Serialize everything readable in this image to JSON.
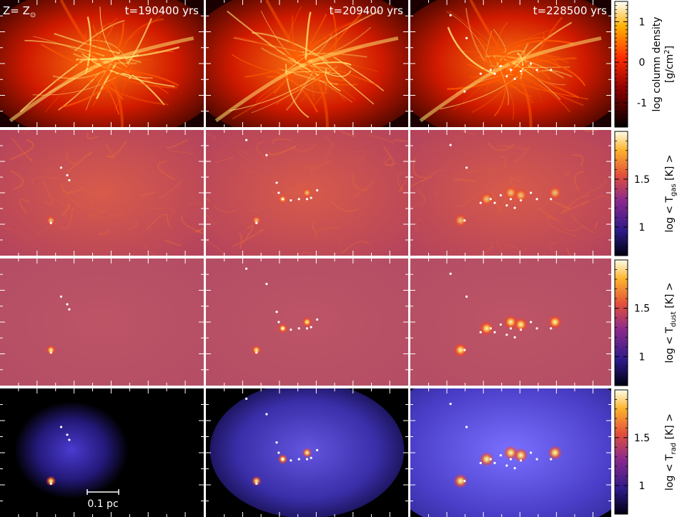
{
  "panels": {
    "metallicity_label_prefix": "Z= Z",
    "metallicity_label_sub": "⊙",
    "times": [
      "t=190400 yrs",
      "t=209400 yrs",
      "t=228500 yrs"
    ],
    "scale_bar": "0.1 pc",
    "rows": [
      {
        "quantity": "column density",
        "palette": "hot"
      },
      {
        "quantity": "gas temperature",
        "palette": "magma"
      },
      {
        "quantity": "dust temperature",
        "palette": "magma"
      },
      {
        "quantity": "radiation temperature",
        "palette": "magma"
      }
    ]
  },
  "colorbars": [
    {
      "title_a": "log column density",
      "title_b": "[g/cm",
      "title_b_sup": "2",
      "title_b_end": "]",
      "ticks": [
        {
          "label": "1",
          "value": 1
        },
        {
          "label": "0",
          "value": 0
        },
        {
          "label": "-1",
          "value": -1
        }
      ],
      "range": [
        -1.6,
        1.5
      ]
    },
    {
      "title_pre": "log < T",
      "title_sub": "gas",
      "title_post": " [K] >",
      "ticks": [
        {
          "label": "1.5",
          "value": 1.5
        },
        {
          "label": "1",
          "value": 1
        }
      ],
      "range": [
        0.7,
        2.0
      ]
    },
    {
      "title_pre": "log < T",
      "title_sub": "dust",
      "title_post": " [K] >",
      "ticks": [
        {
          "label": "1.5",
          "value": 1.5
        },
        {
          "label": "1",
          "value": 1
        }
      ],
      "range": [
        0.7,
        2.0
      ]
    },
    {
      "title_pre": "log < T",
      "title_sub": "rad",
      "title_post": " [K] >",
      "ticks": [
        {
          "label": "1.5",
          "value": 1.5
        },
        {
          "label": "1",
          "value": 1
        }
      ],
      "range": [
        0.7,
        2.0
      ]
    }
  ],
  "colors": {
    "hot_bg": "#c01000",
    "hot_mid": "#ff5a00",
    "hot_bright": "#ffe070",
    "gas_bg": "#b7405f",
    "dust_bg": "#b44e64",
    "rad_bg": "#000000",
    "rad_glow": "#3a2aa8",
    "star": "#ffffff"
  }
}
